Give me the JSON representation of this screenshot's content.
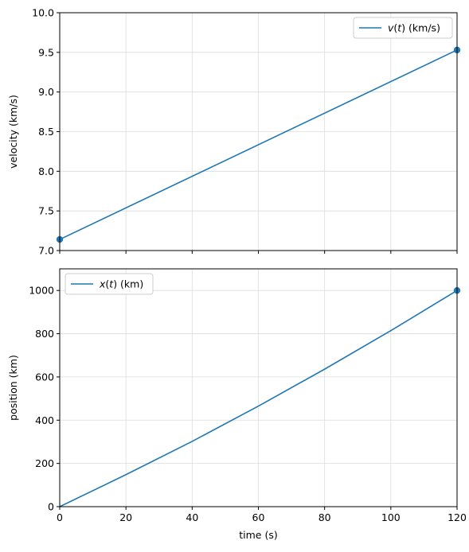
{
  "chart_data": [
    {
      "type": "line",
      "ylabel": "velocity (km/s)",
      "xlabel": "",
      "xlim": [
        0,
        120
      ],
      "ylim": [
        7.0,
        10.0
      ],
      "xticks": [
        0,
        20,
        40,
        60,
        80,
        100,
        120
      ],
      "yticks": [
        "7.0",
        "7.5",
        "8.0",
        "8.5",
        "9.0",
        "9.5",
        "10.0"
      ],
      "grid": true,
      "legend": {
        "placement": "top-right",
        "label_main": "v",
        "label_arg": "(t)",
        "label_unit": " (km/s)"
      },
      "series": [
        {
          "name": "v(t) (km/s)",
          "color": "#1f77b4",
          "x": [
            0,
            120
          ],
          "y": [
            7.14,
            9.53
          ],
          "markers": [
            {
              "x": 0,
              "y": 7.14
            },
            {
              "x": 120,
              "y": 9.53
            }
          ]
        }
      ]
    },
    {
      "type": "line",
      "ylabel": "position (km)",
      "xlabel": "time (s)",
      "xlim": [
        0,
        120
      ],
      "ylim": [
        0,
        1100
      ],
      "xticks": [
        0,
        20,
        40,
        60,
        80,
        100,
        120
      ],
      "yticks": [
        "0",
        "200",
        "400",
        "600",
        "800",
        "1000"
      ],
      "grid": true,
      "legend": {
        "placement": "top-left",
        "label_main": "x",
        "label_arg": "(t)",
        "label_unit": " (km)"
      },
      "series": [
        {
          "name": "x(t) (km)",
          "color": "#1f77b4",
          "x": [
            0,
            20,
            40,
            60,
            80,
            100,
            120
          ],
          "y": [
            0,
            148,
            302,
            465,
            636,
            814,
            1000
          ],
          "markers": [
            {
              "x": 120,
              "y": 1000
            }
          ]
        }
      ]
    }
  ]
}
